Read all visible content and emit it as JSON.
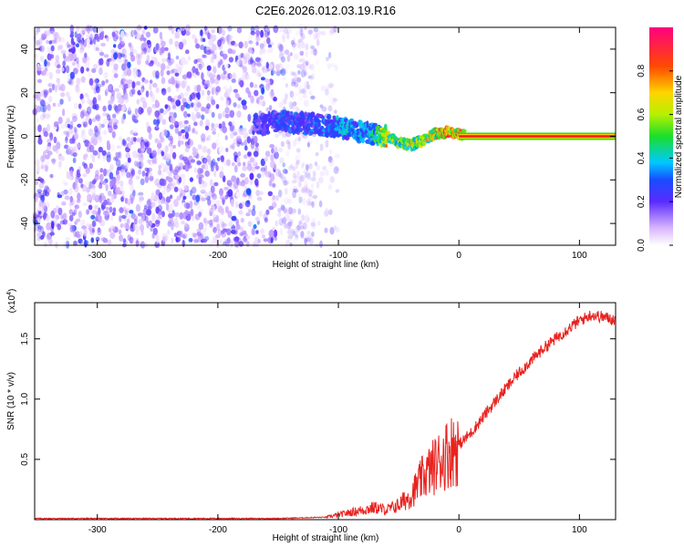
{
  "title": "C2E6.2026.012.03.19.R16",
  "colors": {
    "spectrogram_noise": "#7b2ff2",
    "snr_line": "#e8221f",
    "signal_core": "#ff1a1a",
    "signal_halo": "#22dd22"
  },
  "chart_data": [
    {
      "type": "heatmap",
      "title": "",
      "xlabel": "Height of straight line (km)",
      "ylabel": "Frequency (Hz)",
      "xlim": [
        -352,
        130
      ],
      "ylim": [
        -50,
        50
      ],
      "x_ticks": [
        -300,
        -200,
        -100,
        0,
        100
      ],
      "y_ticks": [
        -40,
        -20,
        0,
        20,
        40
      ],
      "colorbar": {
        "label": "Normalized spectral amplitude",
        "range": [
          0.0,
          1.0
        ],
        "ticks": [
          0.0,
          0.2,
          0.4,
          0.6,
          0.8
        ]
      },
      "signal_track": {
        "x": [
          -170,
          -150,
          -130,
          -110,
          -90,
          -80,
          -70,
          -60,
          -50,
          -40,
          -30,
          -20,
          -10,
          0,
          20,
          60,
          100,
          130
        ],
        "frequency": [
          5,
          7,
          6,
          5,
          3,
          2,
          1,
          0,
          -3,
          -4,
          -2,
          1,
          2,
          1,
          0,
          0,
          0,
          0
        ],
        "amplitude": [
          0.25,
          0.3,
          0.3,
          0.35,
          0.4,
          0.4,
          0.45,
          0.75,
          0.6,
          0.7,
          0.65,
          0.8,
          0.85,
          0.9,
          0.95,
          0.95,
          0.95,
          0.95
        ]
      },
      "noise_region_x": [
        -352,
        -120
      ],
      "noise_amplitude_max": 0.15
    },
    {
      "type": "line",
      "title": "",
      "xlabel": "Height of straight line (km)",
      "ylabel": "SNR (10 * v/v)",
      "y_multiplier": "(x10^4)",
      "xlim": [
        -352,
        130
      ],
      "ylim": [
        0,
        1.8
      ],
      "x_ticks": [
        -300,
        -200,
        -100,
        0,
        100
      ],
      "y_ticks": [
        0.5,
        1.0,
        1.5
      ],
      "series": [
        {
          "x": [
            -352,
            -300,
            -250,
            -200,
            -150,
            -110,
            -100,
            -90,
            -80,
            -70,
            -60,
            -50,
            -40,
            -30,
            -20,
            -10,
            0,
            10,
            20,
            30,
            40,
            50,
            60,
            70,
            80,
            90,
            100,
            110,
            120,
            130
          ],
          "y": [
            0.01,
            0.01,
            0.01,
            0.01,
            0.01,
            0.02,
            0.04,
            0.06,
            0.08,
            0.1,
            0.08,
            0.12,
            0.2,
            0.35,
            0.45,
            0.55,
            0.62,
            0.72,
            0.85,
            0.98,
            1.1,
            1.22,
            1.32,
            1.42,
            1.5,
            1.58,
            1.65,
            1.7,
            1.68,
            1.66
          ]
        }
      ]
    }
  ]
}
